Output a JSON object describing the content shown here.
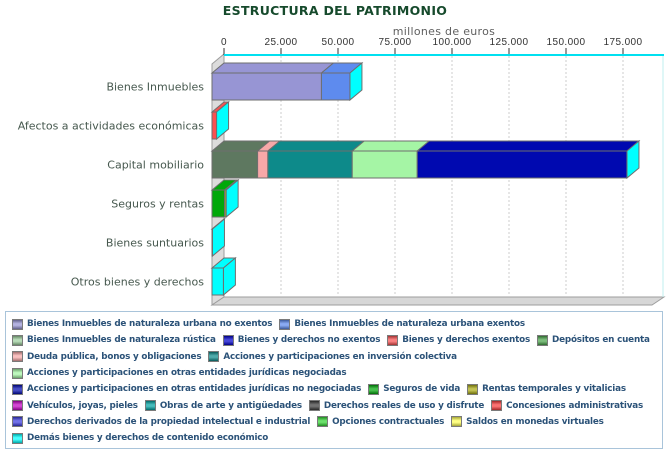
{
  "chart_data": {
    "type": "bar",
    "orientation": "horizontal-stacked-3d",
    "title": "ESTRUCTURA DEL PATRIMONIO",
    "xlabel": "millones de euros",
    "xlim": [
      0,
      193000
    ],
    "xtick_values": [
      0,
      25000,
      50000,
      75000,
      100000,
      125000,
      150000,
      175000
    ],
    "xtick_labels": [
      "0",
      "25.000",
      "50.000",
      "75.000",
      "100.000",
      "125.000",
      "150.000",
      "175.000"
    ],
    "grid": "vertical-dashed",
    "legend_position": "bottom",
    "categories": [
      "Bienes Inmuebles",
      "Afectos a actividades económicas",
      "Capital mobiliario",
      "Seguros y rentas",
      "Bienes suntuarios",
      "Otros bienes y derechos"
    ],
    "series": [
      {
        "id": "urb_no_ex",
        "label": "Bienes Inmuebles de naturaleza urbana no exentos",
        "color": "#9795D4"
      },
      {
        "id": "urb_ex",
        "label": "Bienes Inmuebles de naturaleza urbana exentos",
        "color": "#5E8BEE"
      },
      {
        "id": "rustica",
        "label": "Bienes Inmuebles de naturaleza rústica",
        "color": "#9CCE9C"
      },
      {
        "id": "byd_no_ex",
        "label": "Bienes y derechos no exentos",
        "color": "#0000CC"
      },
      {
        "id": "byd_ex",
        "label": "Bienes y derechos exentos",
        "color": "#F95050"
      },
      {
        "id": "depositos",
        "label": "Depósitos en cuenta",
        "color": "#4AA44A",
        "bar_color": "#5E7860"
      },
      {
        "id": "deuda",
        "label": "Deuda pública, bonos y obligaciones",
        "color": "#F7A8A8"
      },
      {
        "id": "acc_inv",
        "label": "Acciones y participaciones en inversión colectiva",
        "color": "#0D8A8A"
      },
      {
        "id": "acc_neg",
        "label": "Acciones y participaciones en otras entidades jurídicas negociadas",
        "color": "#A5F5A5"
      },
      {
        "id": "acc_no_neg",
        "label": "Acciones y participaciones en otras entidades jurídicas no negociadas",
        "color": "#0009B0"
      },
      {
        "id": "seg_vida",
        "label": "Seguros de vida",
        "color": "#00A80A"
      },
      {
        "id": "rentas",
        "label": "Rentas temporales y vitalicias",
        "color": "#ABAB12"
      },
      {
        "id": "vehiculos",
        "label": "Vehículos, joyas, pieles",
        "color": "#C400C4"
      },
      {
        "id": "obras",
        "label": "Obras de arte y antigüedades",
        "color": "#00A4A4"
      },
      {
        "id": "der_reales",
        "label": "Derechos reales de uso y disfrute",
        "color": "#3C3C3C"
      },
      {
        "id": "concesiones",
        "label": "Concesiones administrativas",
        "color": "#FA3C3C"
      },
      {
        "id": "der_prop",
        "label": "Derechos derivados de la propiedad intelectual e industrial",
        "color": "#3B3BE0"
      },
      {
        "id": "opciones",
        "label": "Opciones contractuales",
        "color": "#33D633"
      },
      {
        "id": "saldos",
        "label": "Saldos en monedas virtuales",
        "color": "#FFFF55"
      },
      {
        "id": "demas",
        "label": "Demás bienes y derechos de contenido económico",
        "color": "#00FFFF"
      }
    ],
    "bars": [
      {
        "category": "Bienes Inmuebles",
        "segments": [
          {
            "series": "urb_no_ex",
            "value": 48000
          },
          {
            "series": "urb_ex",
            "value": 12500
          }
        ]
      },
      {
        "category": "Afectos a actividades económicas",
        "segments": [
          {
            "series": "byd_ex",
            "value": 2000
          }
        ]
      },
      {
        "category": "Capital mobiliario",
        "segments": [
          {
            "series": "depositos",
            "value": 20000
          },
          {
            "series": "deuda",
            "value": 4500
          },
          {
            "series": "acc_inv",
            "value": 37000
          },
          {
            "series": "acc_neg",
            "value": 28500
          },
          {
            "series": "acc_no_neg",
            "value": 92000
          }
        ]
      },
      {
        "category": "Seguros y rentas",
        "segments": [
          {
            "series": "seg_vida",
            "value": 5500
          },
          {
            "series": "rentas",
            "value": 700
          }
        ]
      },
      {
        "category": "Bienes suntuarios",
        "segments": [
          {
            "series": "vehiculos",
            "value": 200
          }
        ]
      },
      {
        "category": "Otros bienes y derechos",
        "segments": [
          {
            "series": "demas",
            "value": 5000
          }
        ]
      }
    ],
    "legend_rows": [
      [
        "urb_no_ex",
        "urb_ex"
      ],
      [
        "rustica",
        "byd_no_ex",
        "byd_ex",
        "depositos"
      ],
      [
        "deuda",
        "acc_inv"
      ],
      [
        "acc_neg"
      ],
      [
        "acc_no_neg",
        "seg_vida",
        "rentas"
      ],
      [
        "vehiculos",
        "obras",
        "der_reales",
        "concesiones"
      ],
      [
        "der_prop",
        "opciones",
        "saldos"
      ],
      [
        "demas"
      ]
    ],
    "frame_colors": {
      "axis_line": "#00E0F0",
      "right_edge": "#BFEFEF",
      "bar_end_cap": "#00FFFF",
      "wall": "#DCDCDC",
      "floor": "#D7D7D7",
      "frame_stroke": "#9E9E9E",
      "bar_stroke": "#6E6E6E",
      "gridline": "#CCCCCC",
      "title_color": "#164A2C",
      "legend_text": "#2B5278",
      "legend_border": "#A9C4DA",
      "category_label": "#46584E",
      "tick_label": "#333333"
    }
  }
}
